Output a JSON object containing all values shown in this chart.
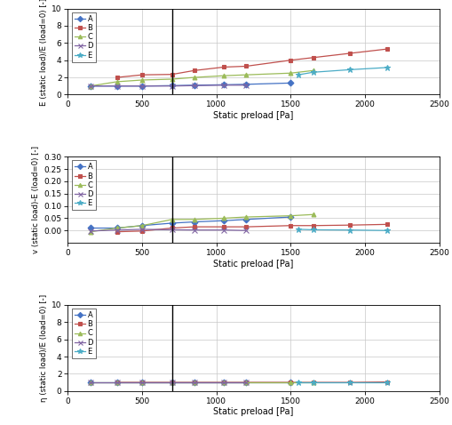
{
  "series_labels": [
    "A",
    "B",
    "C",
    "D",
    "E"
  ],
  "colors": {
    "A": "#4472C4",
    "B": "#C0504D",
    "C": "#9BBB59",
    "D": "#8064A2",
    "E": "#4BACC6"
  },
  "markers": {
    "A": "D",
    "B": "s",
    "C": "^",
    "D": "x",
    "E": "*"
  },
  "markersize": {
    "A": 3.5,
    "B": 3.5,
    "C": 3.5,
    "D": 4.0,
    "E": 4.5
  },
  "vline_x": 700,
  "plot1": {
    "ylabel": "E (static load)/E (load=0) [-]",
    "xlabel": "Static preload [Pa]",
    "ylim": [
      0,
      10
    ],
    "xlim": [
      0,
      2500
    ],
    "yticks": [
      0,
      2,
      4,
      6,
      8,
      10
    ],
    "xticks": [
      0,
      500,
      1000,
      1500,
      2000,
      2500
    ],
    "data": {
      "A": {
        "x": [
          150,
          330,
          500,
          700,
          850,
          1050,
          1200,
          1500
        ],
        "y": [
          1.0,
          1.0,
          1.0,
          1.05,
          1.1,
          1.15,
          1.2,
          1.35
        ]
      },
      "B": {
        "x": [
          330,
          500,
          700,
          850,
          1050,
          1200,
          1500,
          1650,
          1900,
          2150
        ],
        "y": [
          2.0,
          2.3,
          2.35,
          2.8,
          3.2,
          3.3,
          4.0,
          4.3,
          4.8,
          5.3
        ]
      },
      "C": {
        "x": [
          150,
          330,
          500,
          700,
          850,
          1050,
          1200,
          1500,
          1650
        ],
        "y": [
          1.0,
          1.5,
          1.7,
          1.8,
          2.0,
          2.2,
          2.3,
          2.5,
          2.8
        ]
      },
      "D": {
        "x": [
          150,
          330,
          500,
          700,
          850,
          1050,
          1200
        ],
        "y": [
          1.0,
          1.0,
          1.0,
          1.0,
          1.05,
          1.1,
          1.1
        ]
      },
      "E": {
        "x": [
          1550,
          1650,
          1900,
          2150
        ],
        "y": [
          2.3,
          2.6,
          2.9,
          3.15
        ]
      }
    }
  },
  "plot2": {
    "ylabel": "v (static load)-E (load=0) [-]",
    "xlabel": "Static preload [Pa]",
    "ylim": [
      -0.05,
      0.3
    ],
    "xlim": [
      0,
      2500
    ],
    "yticks": [
      0.0,
      0.05,
      0.1,
      0.15,
      0.2,
      0.25,
      0.3
    ],
    "xticks": [
      0,
      500,
      1000,
      1500,
      2000,
      2500
    ],
    "data": {
      "A": {
        "x": [
          150,
          330,
          500,
          700,
          850,
          1050,
          1200,
          1500
        ],
        "y": [
          0.01,
          0.01,
          0.02,
          0.03,
          0.035,
          0.04,
          0.045,
          0.055
        ]
      },
      "B": {
        "x": [
          330,
          500,
          700,
          850,
          1050,
          1200,
          1500,
          1650,
          1900,
          2150
        ],
        "y": [
          -0.005,
          -0.002,
          0.01,
          0.015,
          0.015,
          0.015,
          0.02,
          0.02,
          0.022,
          0.025
        ]
      },
      "C": {
        "x": [
          150,
          330,
          500,
          700,
          850,
          1050,
          1200,
          1500,
          1650
        ],
        "y": [
          -0.005,
          0.01,
          0.02,
          0.045,
          0.045,
          0.05,
          0.055,
          0.06,
          0.065
        ]
      },
      "D": {
        "x": [
          150,
          330,
          500,
          700,
          850,
          1050,
          1200
        ],
        "y": [
          -0.002,
          0.002,
          0.005,
          0.003,
          0.002,
          0.002,
          0.0
        ]
      },
      "E": {
        "x": [
          1550,
          1650,
          1900,
          2150
        ],
        "y": [
          0.005,
          0.003,
          0.002,
          0.0
        ]
      }
    }
  },
  "plot3": {
    "ylabel": "η (static load)/E (load=0) [-]",
    "xlabel": "Static preload [Pa]",
    "ylim": [
      0,
      10
    ],
    "xlim": [
      0,
      2500
    ],
    "yticks": [
      0,
      2,
      4,
      6,
      8,
      10
    ],
    "xticks": [
      0,
      500,
      1000,
      1500,
      2000,
      2500
    ],
    "data": {
      "A": {
        "x": [
          150,
          330,
          500,
          700,
          850,
          1050,
          1200,
          1500
        ],
        "y": [
          1.0,
          1.0,
          1.0,
          1.0,
          1.0,
          1.0,
          1.0,
          1.0
        ]
      },
      "B": {
        "x": [
          330,
          500,
          700,
          850,
          1050,
          1200,
          1500,
          1650,
          1900,
          2150
        ],
        "y": [
          1.0,
          1.0,
          1.0,
          1.0,
          1.0,
          1.0,
          1.0,
          1.0,
          1.0,
          1.05
        ]
      },
      "C": {
        "x": [
          150,
          330,
          500,
          700,
          850,
          1050,
          1200,
          1500,
          1650
        ],
        "y": [
          1.0,
          1.0,
          1.0,
          1.0,
          1.0,
          1.0,
          1.0,
          1.0,
          1.0
        ]
      },
      "D": {
        "x": [
          150,
          330,
          500,
          700,
          850,
          1050,
          1200
        ],
        "y": [
          1.0,
          1.0,
          1.0,
          1.0,
          1.0,
          1.0,
          1.0
        ]
      },
      "E": {
        "x": [
          1550,
          1650,
          1900,
          2150
        ],
        "y": [
          1.0,
          1.0,
          1.0,
          1.0
        ]
      }
    }
  }
}
